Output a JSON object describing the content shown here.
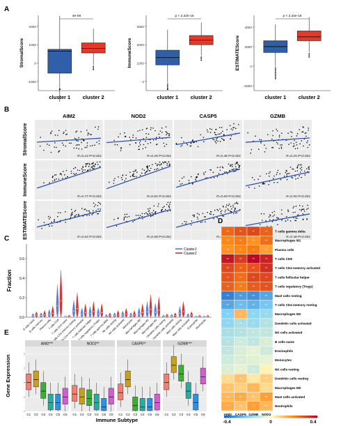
{
  "panels": {
    "A": {
      "label": "A",
      "xcats": [
        "cluster 1",
        "cluster 2"
      ],
      "colors": {
        "cluster1": "#2e5fa8",
        "cluster2": "#e3392a"
      },
      "plots": [
        {
          "ylabel": "StromalScore",
          "pval": "4e-08",
          "yticks": [
            "2000",
            "1000",
            "0",
            "-1000"
          ],
          "c1": {
            "q1": -550,
            "median": 650,
            "q3": 750
          },
          "c2": {
            "q1": 550,
            "median": 800,
            "q3": 1100
          }
        },
        {
          "ylabel": "ImmuneScore",
          "pval": "p < 2.22e-16",
          "yticks": [
            "3000",
            "2000",
            "1000",
            "0"
          ],
          "c1": {
            "q1": 900,
            "median": 1300,
            "q3": 1700
          },
          "c2": {
            "q1": 2000,
            "median": 2250,
            "q3": 2500
          }
        },
        {
          "ylabel": "ESTIMATEScore",
          "pval": "p < 2.22e-16",
          "yticks": [
            "4000",
            "2000",
            "0",
            "-2000"
          ],
          "c1": {
            "q1": 1400,
            "median": 2000,
            "q3": 2600
          },
          "c2": {
            "q1": 2600,
            "median": 3000,
            "q3": 3600
          }
        }
      ]
    },
    "B": {
      "label": "B",
      "cols": [
        "AIM2",
        "NOD2",
        "CASP5",
        "GZMB"
      ],
      "rows": [
        "StromalScore",
        "ImmuneScore",
        "ESTIMATEScore"
      ],
      "stats": [
        [
          "R=0.24 P<0.001",
          "R=0.28 P<0.001",
          "R=0.48 P<0.001",
          "R=0.25 P<0.001"
        ],
        [
          "R=0.77 P<0.001",
          "R=0.82 P<0.001",
          "R=0.69 P<0.001",
          "R=0.55 P<0.001"
        ],
        [
          "R=0.63 P<0.001",
          "R=0.68 P<0.001",
          "R=0.65 P<0.001",
          "R=0.48 P<0.001"
        ]
      ]
    },
    "C": {
      "label": "C",
      "ylabel": "Fraction",
      "yticks": [
        "0.6",
        "0.4",
        "0.2",
        "0.0"
      ],
      "legend": [
        "Cluster1",
        "Cluster2"
      ],
      "colors": {
        "cluster1": "#4a6fd0",
        "cluster2": "#d02020"
      },
      "cell_types": [
        "B cells naive",
        "B cells memory",
        "Plasma cells",
        "T cells CD8",
        "T cells CD4 naive",
        "T cells CD4 memory resting",
        "T cells CD4 memory activated",
        "T cells follicular helper",
        "T cells regulatory (Tregs)",
        "T cells gamma delta",
        "NK cells resting",
        "NK cells activated",
        "Monocytes",
        "Macrophages M0",
        "Macrophages M1",
        "Macrophages M2",
        "Dendritic cells resting",
        "Dendritic cells activated",
        "Mast cells resting",
        "Mast cells activated",
        "Eosinophils",
        "Neutrophils"
      ]
    },
    "D": {
      "label": "D",
      "cols": [
        "AIM2",
        "CASP5",
        "GZMB",
        "NOD2"
      ],
      "rows": [
        "T cells gamma delta",
        "Macrophages M1",
        "Plasma cells",
        "T cells CD8",
        "T cells CD4 memory activated",
        "T cells follicular helper",
        "T cells regulatory (Tregs)",
        "Mast cells resting",
        "T cells CD4 memory resting",
        "Macrophages M2",
        "Dendritic cells activated",
        "NK cells activated",
        "B cells naive",
        "Eosinophils",
        "Monocytes",
        "NK cells resting",
        "Dendritic cells resting",
        "Macrophages M0",
        "Mast cells activated",
        "Neutrophils"
      ],
      "values": [
        [
          0.25,
          0.28,
          0.3,
          0.26
        ],
        [
          0.2,
          0.22,
          0.18,
          0.24
        ],
        [
          0.18,
          0.2,
          0.22,
          0.16
        ],
        [
          0.38,
          0.32,
          0.4,
          0.36
        ],
        [
          0.3,
          0.26,
          0.28,
          0.34
        ],
        [
          0.28,
          0.24,
          0.3,
          0.3
        ],
        [
          0.26,
          0.22,
          0.27,
          0.28
        ],
        [
          -0.35,
          -0.3,
          -0.32,
          -0.28
        ],
        [
          -0.28,
          -0.24,
          -0.26,
          -0.22
        ],
        [
          -0.2,
          0.12,
          -0.18,
          -0.16
        ],
        [
          -0.18,
          -0.14,
          -0.16,
          -0.12
        ],
        [
          -0.14,
          -0.12,
          -0.1,
          -0.1
        ],
        [
          -0.12,
          -0.08,
          -0.1,
          -0.06
        ],
        [
          -0.1,
          -0.06,
          -0.04,
          -0.08
        ],
        [
          -0.08,
          -0.06,
          -0.05,
          -0.04
        ],
        [
          -0.06,
          -0.04,
          -0.08,
          0.02
        ],
        [
          0.06,
          0.1,
          0.04,
          0.08
        ],
        [
          0.1,
          0.08,
          0.12,
          0.06
        ],
        [
          0.12,
          0.14,
          0.1,
          0.16
        ],
        [
          0.14,
          0.1,
          0.16,
          0.12
        ]
      ],
      "cell_text": "**",
      "legend_ticks": [
        "-0.4",
        "0",
        "0.4"
      ]
    },
    "E": {
      "label": "E",
      "ylabel": "Gene Expression",
      "xlabel": "Immune Subtype",
      "facets": [
        "AIM2***",
        "NOD2**",
        "CASP5**",
        "GZMB***"
      ],
      "subtypes": [
        "C1",
        "C2",
        "C3",
        "C4",
        "C5",
        "C6"
      ],
      "palette": [
        "#f08070",
        "#c8a020",
        "#38b030",
        "#20b0a0",
        "#3090e0",
        "#d060d0"
      ],
      "medians": [
        [
          2.0,
          2.2,
          1.4,
          0.6,
          0.6,
          1.0
        ],
        [
          1.2,
          1.0,
          0.9,
          0.6,
          0.3,
          1.0
        ],
        [
          1.3,
          2.2,
          0.4,
          0.3,
          0.3,
          0.6
        ],
        [
          2.0,
          3.2,
          2.6,
          1.4,
          0.6,
          2.4
        ]
      ]
    }
  }
}
